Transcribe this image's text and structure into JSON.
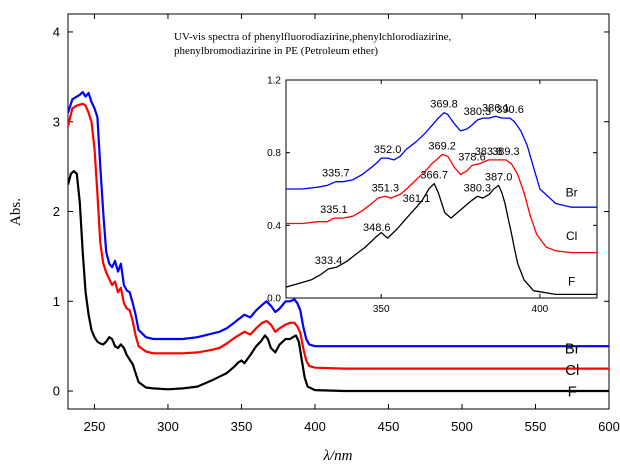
{
  "chart_data": [
    {
      "type": "line",
      "title": "UV-vis spectra of phenylfluorodiazirine,phenylchlorodiazirine,\nphenylbromodiazirine in PE (Petroleum ether)",
      "xlabel": "λ/nm",
      "ylabel": "Abs.",
      "xlim": [
        232,
        600
      ],
      "ylim": [
        -0.2,
        4.2
      ],
      "xticks": [
        250,
        300,
        350,
        400,
        450,
        500,
        550,
        600
      ],
      "yticks": [
        0,
        1,
        2,
        3,
        4
      ],
      "grid": false,
      "legend": "curve end labels on the right",
      "series": [
        {
          "name": "Br",
          "color": "#0000ff",
          "x": [
            232,
            235,
            238,
            240,
            242,
            244,
            246,
            248,
            250,
            252,
            254,
            256,
            258,
            260,
            262,
            264,
            266,
            268,
            270,
            272,
            274,
            276,
            278,
            280,
            285,
            290,
            300,
            310,
            320,
            330,
            335,
            340,
            345,
            348,
            352,
            356,
            360,
            364,
            367,
            370,
            373,
            376,
            380,
            383,
            386,
            388,
            390,
            392,
            394,
            396,
            400,
            420,
            500,
            600
          ],
          "y": [
            3.1,
            3.25,
            3.28,
            3.3,
            3.33,
            3.28,
            3.32,
            3.22,
            3.15,
            3.05,
            2.5,
            1.98,
            1.55,
            1.42,
            1.38,
            1.45,
            1.33,
            1.42,
            1.18,
            1.12,
            1.1,
            0.98,
            0.85,
            0.68,
            0.6,
            0.58,
            0.58,
            0.58,
            0.6,
            0.64,
            0.66,
            0.7,
            0.76,
            0.8,
            0.85,
            0.82,
            0.9,
            0.96,
            1.0,
            0.95,
            0.88,
            0.92,
            1.0,
            1.0,
            1.02,
            0.98,
            0.9,
            0.72,
            0.58,
            0.52,
            0.5,
            0.5,
            0.5,
            0.5
          ]
        },
        {
          "name": "Cl",
          "color": "#ff0000",
          "x": [
            232,
            235,
            238,
            240,
            242,
            244,
            246,
            248,
            250,
            252,
            254,
            256,
            258,
            260,
            262,
            264,
            266,
            268,
            270,
            272,
            274,
            276,
            278,
            280,
            285,
            290,
            300,
            310,
            320,
            330,
            335,
            340,
            345,
            348,
            352,
            356,
            360,
            364,
            367,
            370,
            373,
            376,
            380,
            383,
            386,
            388,
            390,
            392,
            394,
            396,
            400,
            420,
            500,
            600
          ],
          "y": [
            2.95,
            3.15,
            3.18,
            3.19,
            3.2,
            3.18,
            3.1,
            3.0,
            2.7,
            2.2,
            1.65,
            1.42,
            1.32,
            1.25,
            1.18,
            1.22,
            1.1,
            1.15,
            0.98,
            0.92,
            0.9,
            0.78,
            0.62,
            0.5,
            0.44,
            0.42,
            0.42,
            0.42,
            0.43,
            0.46,
            0.48,
            0.53,
            0.59,
            0.62,
            0.66,
            0.63,
            0.7,
            0.76,
            0.78,
            0.74,
            0.66,
            0.7,
            0.74,
            0.76,
            0.76,
            0.72,
            0.65,
            0.48,
            0.34,
            0.28,
            0.26,
            0.25,
            0.25,
            0.25
          ]
        },
        {
          "name": "F",
          "color": "#000000",
          "x": [
            232,
            234,
            236,
            238,
            240,
            242,
            244,
            246,
            248,
            250,
            252,
            254,
            256,
            258,
            260,
            262,
            264,
            266,
            268,
            270,
            272,
            274,
            276,
            278,
            280,
            285,
            290,
            300,
            310,
            320,
            330,
            335,
            340,
            345,
            348,
            350,
            352,
            356,
            360,
            363,
            366,
            368,
            370,
            373,
            376,
            380,
            383,
            385,
            387,
            389,
            391,
            393,
            395,
            400,
            420,
            500,
            600
          ],
          "y": [
            2.3,
            2.42,
            2.45,
            2.42,
            2.1,
            1.55,
            1.1,
            0.85,
            0.68,
            0.6,
            0.55,
            0.53,
            0.52,
            0.55,
            0.6,
            0.58,
            0.5,
            0.48,
            0.52,
            0.48,
            0.4,
            0.35,
            0.3,
            0.2,
            0.1,
            0.04,
            0.03,
            0.02,
            0.03,
            0.05,
            0.12,
            0.16,
            0.2,
            0.27,
            0.32,
            0.34,
            0.31,
            0.4,
            0.5,
            0.55,
            0.62,
            0.58,
            0.48,
            0.43,
            0.52,
            0.58,
            0.58,
            0.6,
            0.62,
            0.55,
            0.35,
            0.15,
            0.05,
            0.01,
            0.0,
            0.0,
            0.0
          ]
        }
      ],
      "curve_labels": [
        {
          "text": "Br",
          "x": 575,
          "y": 0.42
        },
        {
          "text": "Cl",
          "x": 575,
          "y": 0.18
        },
        {
          "text": "F",
          "x": 575,
          "y": -0.06
        }
      ]
    },
    {
      "type": "line",
      "title": "",
      "xlabel": "",
      "ylabel": "",
      "xlim": [
        320,
        418
      ],
      "ylim": [
        0,
        1.2
      ],
      "xticks": [
        350,
        400
      ],
      "yticks": [
        0.0,
        0.4,
        0.8,
        1.2
      ],
      "ytick_labels": [
        "0.0",
        "0.4",
        "0.8",
        "1.2"
      ],
      "grid": false,
      "legend": "curve end labels on the right",
      "series": [
        {
          "name": "Br",
          "color": "#0000ff",
          "x": [
            320,
            325,
            330,
            333,
            335.7,
            338,
            341,
            344,
            347,
            349,
            350,
            352,
            354,
            356,
            358,
            361,
            364,
            366,
            368,
            369.8,
            371,
            373,
            375,
            377,
            378.5,
            380.3,
            382,
            384,
            386.1,
            388,
            390.6,
            392,
            394,
            396,
            398,
            400,
            405,
            410,
            418
          ],
          "y": [
            0.6,
            0.6,
            0.61,
            0.62,
            0.64,
            0.64,
            0.65,
            0.68,
            0.72,
            0.75,
            0.77,
            0.77,
            0.76,
            0.78,
            0.82,
            0.86,
            0.91,
            0.95,
            0.99,
            1.02,
            1.01,
            0.96,
            0.92,
            0.93,
            0.95,
            0.98,
            0.99,
            0.99,
            1.0,
            0.99,
            0.99,
            0.97,
            0.92,
            0.84,
            0.72,
            0.6,
            0.52,
            0.5,
            0.5
          ]
        },
        {
          "name": "Cl",
          "color": "#ff0000",
          "x": [
            320,
            325,
            330,
            333,
            335.1,
            338,
            341,
            344,
            347,
            349,
            351.3,
            353,
            356,
            358,
            361,
            364,
            366,
            368,
            369.2,
            371,
            373,
            375,
            377,
            378.6,
            381,
            383.8,
            386,
            389.3,
            391,
            393,
            395,
            397,
            399,
            402,
            405,
            410,
            418
          ],
          "y": [
            0.41,
            0.41,
            0.42,
            0.42,
            0.44,
            0.44,
            0.45,
            0.48,
            0.52,
            0.55,
            0.56,
            0.55,
            0.57,
            0.6,
            0.65,
            0.7,
            0.74,
            0.77,
            0.79,
            0.78,
            0.72,
            0.68,
            0.7,
            0.73,
            0.74,
            0.76,
            0.76,
            0.76,
            0.74,
            0.68,
            0.58,
            0.45,
            0.35,
            0.28,
            0.26,
            0.25,
            0.25
          ]
        },
        {
          "name": "F",
          "color": "#000000",
          "x": [
            320,
            324,
            328,
            331,
            333.4,
            336,
            339,
            342,
            345,
            348.6,
            350,
            352,
            355,
            358,
            361.1,
            363,
            365,
            366.7,
            368,
            370,
            372,
            374,
            376,
            378,
            380.3,
            382,
            384,
            385.5,
            387.0,
            388,
            389,
            390,
            391,
            392,
            393,
            395,
            398,
            405,
            418
          ],
          "y": [
            0.06,
            0.08,
            0.1,
            0.13,
            0.16,
            0.17,
            0.2,
            0.24,
            0.28,
            0.34,
            0.36,
            0.33,
            0.38,
            0.44,
            0.5,
            0.54,
            0.6,
            0.63,
            0.58,
            0.47,
            0.44,
            0.47,
            0.5,
            0.53,
            0.56,
            0.55,
            0.57,
            0.6,
            0.62,
            0.58,
            0.52,
            0.44,
            0.36,
            0.27,
            0.19,
            0.1,
            0.04,
            0.02,
            0.02
          ]
        }
      ],
      "peak_labels": [
        {
          "series": "Br",
          "text": "335.7",
          "x": 335.7,
          "y": 0.64
        },
        {
          "series": "Br",
          "text": "352.0",
          "x": 352.0,
          "y": 0.77
        },
        {
          "series": "Br",
          "text": "369.8",
          "x": 369.8,
          "y": 1.02
        },
        {
          "series": "Br",
          "text": "380.3",
          "x": 380.3,
          "y": 0.98
        },
        {
          "series": "Br",
          "text": "386.1",
          "x": 386.1,
          "y": 1.0
        },
        {
          "series": "Br",
          "text": "390.6",
          "x": 390.6,
          "y": 0.99
        },
        {
          "series": "Cl",
          "text": "335.1",
          "x": 335.1,
          "y": 0.44
        },
        {
          "series": "Cl",
          "text": "351.3",
          "x": 351.3,
          "y": 0.56
        },
        {
          "series": "Cl",
          "text": "369.2",
          "x": 369.2,
          "y": 0.79
        },
        {
          "series": "Cl",
          "text": "378.6",
          "x": 378.6,
          "y": 0.73
        },
        {
          "series": "Cl",
          "text": "383.8",
          "x": 383.8,
          "y": 0.76
        },
        {
          "series": "Cl",
          "text": "389.3",
          "x": 389.3,
          "y": 0.76
        },
        {
          "series": "F",
          "text": "333.4",
          "x": 333.4,
          "y": 0.16
        },
        {
          "series": "F",
          "text": "348.6",
          "x": 348.6,
          "y": 0.34
        },
        {
          "series": "F",
          "text": "361.1",
          "x": 361.1,
          "y": 0.5
        },
        {
          "series": "F",
          "text": "366.7",
          "x": 366.7,
          "y": 0.63
        },
        {
          "series": "F",
          "text": "380.3",
          "x": 380.3,
          "y": 0.56
        },
        {
          "series": "F",
          "text": "387.0",
          "x": 387.0,
          "y": 0.62
        }
      ],
      "curve_labels": [
        {
          "text": "Br",
          "x": 410,
          "y": 0.56
        },
        {
          "text": "Cl",
          "x": 410,
          "y": 0.32
        },
        {
          "text": "F",
          "x": 410,
          "y": 0.07
        }
      ]
    }
  ]
}
